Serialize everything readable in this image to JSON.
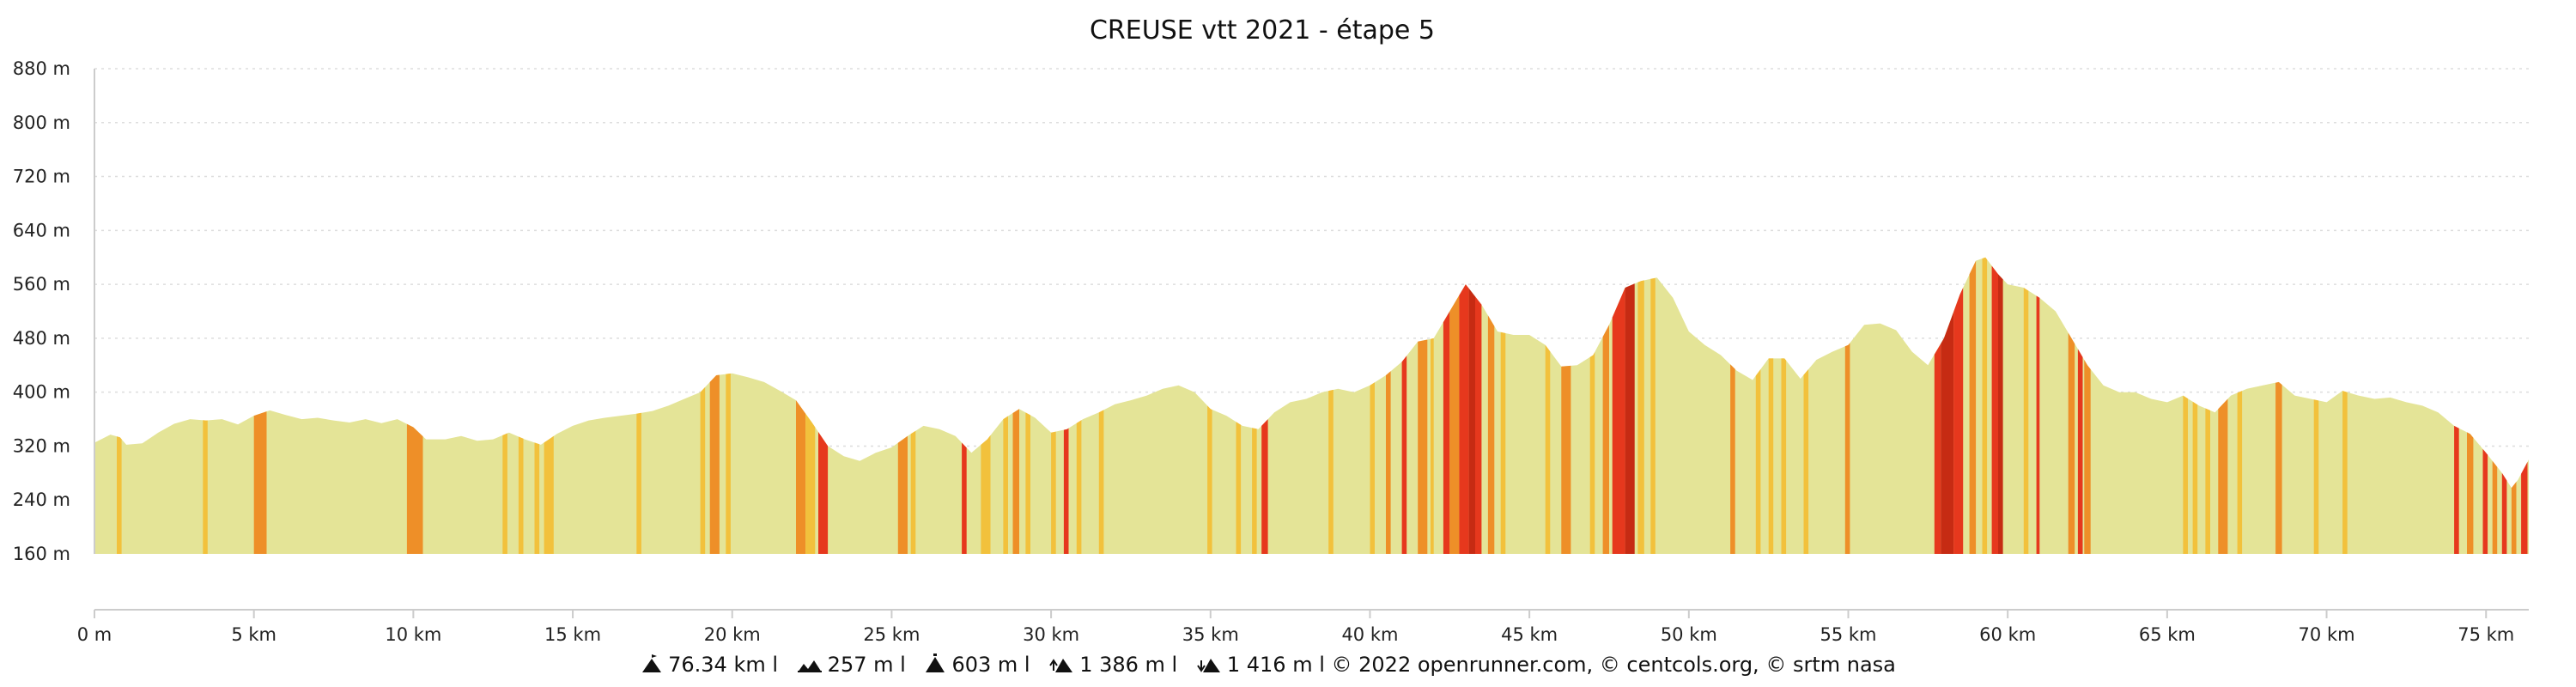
{
  "chart_data": {
    "type": "area",
    "title": "CREUSE vtt 2021 - étape 5",
    "xlabel": "",
    "ylabel": "",
    "x_unit": "km",
    "y_unit": "m",
    "xlim": [
      0,
      76.34
    ],
    "ylim": [
      160,
      880
    ],
    "grid": true,
    "y_ticks": [
      "160 m",
      "240 m",
      "320 m",
      "400 m",
      "480 m",
      "560 m",
      "640 m",
      "720 m",
      "800 m",
      "880 m"
    ],
    "x_ticks": [
      "0 m",
      "5 km",
      "10 km",
      "15 km",
      "20 km",
      "25 km",
      "30 km",
      "35 km",
      "40 km",
      "45 km",
      "50 km",
      "55 km",
      "60 km",
      "65 km",
      "70 km",
      "75 km"
    ],
    "colors": {
      "base": "#e4e497",
      "moderate": "#f2c13c",
      "steep": "#ee8f28",
      "very_steep": "#e6381d",
      "extreme": "#c62b13",
      "grid": "#dddddd"
    },
    "profile": [
      {
        "km": 0,
        "elev": 325
      },
      {
        "km": 0.5,
        "elev": 337
      },
      {
        "km": 0.8,
        "elev": 333
      },
      {
        "km": 1.0,
        "elev": 322
      },
      {
        "km": 1.5,
        "elev": 324
      },
      {
        "km": 2.0,
        "elev": 340
      },
      {
        "km": 2.5,
        "elev": 353
      },
      {
        "km": 3.0,
        "elev": 360
      },
      {
        "km": 3.5,
        "elev": 358
      },
      {
        "km": 4.0,
        "elev": 360
      },
      {
        "km": 4.5,
        "elev": 352
      },
      {
        "km": 5.0,
        "elev": 365
      },
      {
        "km": 5.5,
        "elev": 373
      },
      {
        "km": 6.0,
        "elev": 366
      },
      {
        "km": 6.5,
        "elev": 360
      },
      {
        "km": 7.0,
        "elev": 362
      },
      {
        "km": 7.5,
        "elev": 358
      },
      {
        "km": 8.0,
        "elev": 355
      },
      {
        "km": 8.5,
        "elev": 360
      },
      {
        "km": 9.0,
        "elev": 354
      },
      {
        "km": 9.5,
        "elev": 360
      },
      {
        "km": 10.0,
        "elev": 348
      },
      {
        "km": 10.4,
        "elev": 330
      },
      {
        "km": 11.0,
        "elev": 330
      },
      {
        "km": 11.5,
        "elev": 335
      },
      {
        "km": 12.0,
        "elev": 328
      },
      {
        "km": 12.5,
        "elev": 330
      },
      {
        "km": 13.0,
        "elev": 340
      },
      {
        "km": 13.5,
        "elev": 330
      },
      {
        "km": 14.0,
        "elev": 322
      },
      {
        "km": 14.5,
        "elev": 338
      },
      {
        "km": 15.0,
        "elev": 350
      },
      {
        "km": 15.5,
        "elev": 358
      },
      {
        "km": 16.0,
        "elev": 362
      },
      {
        "km": 16.5,
        "elev": 365
      },
      {
        "km": 17.0,
        "elev": 368
      },
      {
        "km": 17.5,
        "elev": 372
      },
      {
        "km": 18.0,
        "elev": 380
      },
      {
        "km": 18.5,
        "elev": 390
      },
      {
        "km": 19.0,
        "elev": 400
      },
      {
        "km": 19.5,
        "elev": 425
      },
      {
        "km": 20.0,
        "elev": 428
      },
      {
        "km": 20.5,
        "elev": 422
      },
      {
        "km": 21.0,
        "elev": 415
      },
      {
        "km": 21.5,
        "elev": 402
      },
      {
        "km": 22.0,
        "elev": 388
      },
      {
        "km": 22.5,
        "elev": 355
      },
      {
        "km": 23.0,
        "elev": 320
      },
      {
        "km": 23.5,
        "elev": 305
      },
      {
        "km": 24.0,
        "elev": 298
      },
      {
        "km": 24.5,
        "elev": 310
      },
      {
        "km": 25.0,
        "elev": 318
      },
      {
        "km": 25.5,
        "elev": 335
      },
      {
        "km": 26.0,
        "elev": 350
      },
      {
        "km": 26.5,
        "elev": 345
      },
      {
        "km": 27.0,
        "elev": 335
      },
      {
        "km": 27.5,
        "elev": 310
      },
      {
        "km": 28.0,
        "elev": 330
      },
      {
        "km": 28.5,
        "elev": 360
      },
      {
        "km": 29.0,
        "elev": 375
      },
      {
        "km": 29.5,
        "elev": 362
      },
      {
        "km": 30.0,
        "elev": 340
      },
      {
        "km": 30.5,
        "elev": 345
      },
      {
        "km": 31.0,
        "elev": 360
      },
      {
        "km": 31.5,
        "elev": 370
      },
      {
        "km": 32.0,
        "elev": 382
      },
      {
        "km": 32.5,
        "elev": 388
      },
      {
        "km": 33.0,
        "elev": 395
      },
      {
        "km": 33.5,
        "elev": 405
      },
      {
        "km": 34.0,
        "elev": 410
      },
      {
        "km": 34.5,
        "elev": 400
      },
      {
        "km": 35.0,
        "elev": 375
      },
      {
        "km": 35.5,
        "elev": 365
      },
      {
        "km": 36.0,
        "elev": 350
      },
      {
        "km": 36.5,
        "elev": 345
      },
      {
        "km": 37.0,
        "elev": 370
      },
      {
        "km": 37.5,
        "elev": 385
      },
      {
        "km": 38.0,
        "elev": 390
      },
      {
        "km": 38.5,
        "elev": 400
      },
      {
        "km": 39.0,
        "elev": 405
      },
      {
        "km": 39.5,
        "elev": 400
      },
      {
        "km": 40.0,
        "elev": 410
      },
      {
        "km": 40.5,
        "elev": 425
      },
      {
        "km": 41.0,
        "elev": 445
      },
      {
        "km": 41.5,
        "elev": 475
      },
      {
        "km": 42.0,
        "elev": 480
      },
      {
        "km": 42.5,
        "elev": 520
      },
      {
        "km": 43.0,
        "elev": 560
      },
      {
        "km": 43.5,
        "elev": 530
      },
      {
        "km": 44.0,
        "elev": 490
      },
      {
        "km": 44.5,
        "elev": 485
      },
      {
        "km": 45.0,
        "elev": 485
      },
      {
        "km": 45.5,
        "elev": 470
      },
      {
        "km": 46.0,
        "elev": 438
      },
      {
        "km": 46.5,
        "elev": 440
      },
      {
        "km": 47.0,
        "elev": 455
      },
      {
        "km": 47.5,
        "elev": 500
      },
      {
        "km": 48.0,
        "elev": 555
      },
      {
        "km": 48.5,
        "elev": 565
      },
      {
        "km": 49.0,
        "elev": 570
      },
      {
        "km": 49.5,
        "elev": 540
      },
      {
        "km": 50.0,
        "elev": 490
      },
      {
        "km": 50.5,
        "elev": 470
      },
      {
        "km": 51.0,
        "elev": 455
      },
      {
        "km": 51.5,
        "elev": 432
      },
      {
        "km": 52.0,
        "elev": 418
      },
      {
        "km": 52.5,
        "elev": 450
      },
      {
        "km": 53.0,
        "elev": 450
      },
      {
        "km": 53.5,
        "elev": 420
      },
      {
        "km": 54.0,
        "elev": 448
      },
      {
        "km": 54.5,
        "elev": 460
      },
      {
        "km": 55.0,
        "elev": 470
      },
      {
        "km": 55.5,
        "elev": 500
      },
      {
        "km": 56.0,
        "elev": 502
      },
      {
        "km": 56.5,
        "elev": 492
      },
      {
        "km": 57.0,
        "elev": 460
      },
      {
        "km": 57.5,
        "elev": 440
      },
      {
        "km": 58.0,
        "elev": 480
      },
      {
        "km": 58.5,
        "elev": 545
      },
      {
        "km": 59.0,
        "elev": 595
      },
      {
        "km": 59.3,
        "elev": 600
      },
      {
        "km": 59.7,
        "elev": 575
      },
      {
        "km": 60.0,
        "elev": 560
      },
      {
        "km": 60.5,
        "elev": 555
      },
      {
        "km": 61.0,
        "elev": 540
      },
      {
        "km": 61.5,
        "elev": 520
      },
      {
        "km": 62.0,
        "elev": 480
      },
      {
        "km": 62.5,
        "elev": 440
      },
      {
        "km": 63.0,
        "elev": 410
      },
      {
        "km": 63.5,
        "elev": 400
      },
      {
        "km": 64.0,
        "elev": 400
      },
      {
        "km": 64.5,
        "elev": 390
      },
      {
        "km": 65.0,
        "elev": 385
      },
      {
        "km": 65.5,
        "elev": 395
      },
      {
        "km": 66.0,
        "elev": 380
      },
      {
        "km": 66.5,
        "elev": 370
      },
      {
        "km": 67.0,
        "elev": 395
      },
      {
        "km": 67.5,
        "elev": 405
      },
      {
        "km": 68.0,
        "elev": 410
      },
      {
        "km": 68.5,
        "elev": 415
      },
      {
        "km": 69.0,
        "elev": 395
      },
      {
        "km": 69.5,
        "elev": 390
      },
      {
        "km": 70.0,
        "elev": 385
      },
      {
        "km": 70.5,
        "elev": 402
      },
      {
        "km": 71.0,
        "elev": 395
      },
      {
        "km": 71.5,
        "elev": 390
      },
      {
        "km": 72.0,
        "elev": 392
      },
      {
        "km": 72.5,
        "elev": 385
      },
      {
        "km": 73.0,
        "elev": 380
      },
      {
        "km": 73.5,
        "elev": 370
      },
      {
        "km": 74.0,
        "elev": 350
      },
      {
        "km": 74.5,
        "elev": 338
      },
      {
        "km": 75.0,
        "elev": 310
      },
      {
        "km": 75.5,
        "elev": 280
      },
      {
        "km": 75.8,
        "elev": 258
      },
      {
        "km": 76.0,
        "elev": 270
      },
      {
        "km": 76.34,
        "elev": 300
      }
    ],
    "slope_segments": [
      {
        "from": 0.7,
        "to": 0.85,
        "level": "moderate"
      },
      {
        "from": 3.4,
        "to": 3.55,
        "level": "moderate"
      },
      {
        "from": 5.0,
        "to": 5.4,
        "level": "steep"
      },
      {
        "from": 9.8,
        "to": 10.3,
        "level": "steep"
      },
      {
        "from": 12.8,
        "to": 12.95,
        "level": "moderate"
      },
      {
        "from": 13.3,
        "to": 13.45,
        "level": "moderate"
      },
      {
        "from": 13.8,
        "to": 13.95,
        "level": "moderate"
      },
      {
        "from": 14.1,
        "to": 14.4,
        "level": "moderate"
      },
      {
        "from": 17.0,
        "to": 17.15,
        "level": "moderate"
      },
      {
        "from": 19.0,
        "to": 19.15,
        "level": "moderate"
      },
      {
        "from": 19.3,
        "to": 19.6,
        "level": "steep"
      },
      {
        "from": 19.8,
        "to": 19.95,
        "level": "moderate"
      },
      {
        "from": 22.0,
        "to": 22.3,
        "level": "steep"
      },
      {
        "from": 22.3,
        "to": 22.6,
        "level": "moderate"
      },
      {
        "from": 22.7,
        "to": 23.0,
        "level": "very_steep"
      },
      {
        "from": 25.2,
        "to": 25.5,
        "level": "steep"
      },
      {
        "from": 25.6,
        "to": 25.75,
        "level": "moderate"
      },
      {
        "from": 27.2,
        "to": 27.35,
        "level": "very_steep"
      },
      {
        "from": 27.8,
        "to": 28.1,
        "level": "moderate"
      },
      {
        "from": 28.5,
        "to": 28.65,
        "level": "moderate"
      },
      {
        "from": 28.8,
        "to": 29.0,
        "level": "steep"
      },
      {
        "from": 29.2,
        "to": 29.35,
        "level": "moderate"
      },
      {
        "from": 30.0,
        "to": 30.15,
        "level": "moderate"
      },
      {
        "from": 30.4,
        "to": 30.55,
        "level": "very_steep"
      },
      {
        "from": 30.8,
        "to": 30.95,
        "level": "moderate"
      },
      {
        "from": 31.5,
        "to": 31.65,
        "level": "moderate"
      },
      {
        "from": 34.9,
        "to": 35.05,
        "level": "moderate"
      },
      {
        "from": 35.8,
        "to": 35.95,
        "level": "moderate"
      },
      {
        "from": 36.3,
        "to": 36.45,
        "level": "moderate"
      },
      {
        "from": 36.6,
        "to": 36.8,
        "level": "very_steep"
      },
      {
        "from": 38.7,
        "to": 38.85,
        "level": "moderate"
      },
      {
        "from": 40.0,
        "to": 40.15,
        "level": "moderate"
      },
      {
        "from": 40.5,
        "to": 40.65,
        "level": "steep"
      },
      {
        "from": 41.0,
        "to": 41.15,
        "level": "very_steep"
      },
      {
        "from": 41.5,
        "to": 41.8,
        "level": "steep"
      },
      {
        "from": 41.9,
        "to": 42.0,
        "level": "moderate"
      },
      {
        "from": 42.3,
        "to": 42.5,
        "level": "very_steep"
      },
      {
        "from": 42.5,
        "to": 42.8,
        "level": "steep"
      },
      {
        "from": 42.8,
        "to": 43.1,
        "level": "very_steep"
      },
      {
        "from": 43.1,
        "to": 43.3,
        "level": "extreme"
      },
      {
        "from": 43.3,
        "to": 43.5,
        "level": "very_steep"
      },
      {
        "from": 43.7,
        "to": 43.9,
        "level": "steep"
      },
      {
        "from": 44.1,
        "to": 44.25,
        "level": "moderate"
      },
      {
        "from": 45.5,
        "to": 45.65,
        "level": "moderate"
      },
      {
        "from": 46.0,
        "to": 46.3,
        "level": "steep"
      },
      {
        "from": 46.9,
        "to": 47.05,
        "level": "moderate"
      },
      {
        "from": 47.3,
        "to": 47.5,
        "level": "steep"
      },
      {
        "from": 47.6,
        "to": 48.0,
        "level": "very_steep"
      },
      {
        "from": 48.0,
        "to": 48.3,
        "level": "extreme"
      },
      {
        "from": 48.4,
        "to": 48.6,
        "level": "moderate"
      },
      {
        "from": 48.8,
        "to": 48.95,
        "level": "moderate"
      },
      {
        "from": 51.3,
        "to": 51.45,
        "level": "steep"
      },
      {
        "from": 52.1,
        "to": 52.25,
        "level": "moderate"
      },
      {
        "from": 52.5,
        "to": 52.65,
        "level": "moderate"
      },
      {
        "from": 52.9,
        "to": 53.05,
        "level": "moderate"
      },
      {
        "from": 53.6,
        "to": 53.75,
        "level": "moderate"
      },
      {
        "from": 54.9,
        "to": 55.05,
        "level": "steep"
      },
      {
        "from": 57.7,
        "to": 57.9,
        "level": "very_steep"
      },
      {
        "from": 57.9,
        "to": 58.3,
        "level": "extreme"
      },
      {
        "from": 58.3,
        "to": 58.6,
        "level": "very_steep"
      },
      {
        "from": 58.8,
        "to": 59.0,
        "level": "steep"
      },
      {
        "from": 59.2,
        "to": 59.35,
        "level": "moderate"
      },
      {
        "from": 59.5,
        "to": 59.7,
        "level": "very_steep"
      },
      {
        "from": 59.7,
        "to": 59.85,
        "level": "extreme"
      },
      {
        "from": 60.5,
        "to": 60.65,
        "level": "moderate"
      },
      {
        "from": 60.9,
        "to": 61.0,
        "level": "very_steep"
      },
      {
        "from": 61.9,
        "to": 62.1,
        "level": "steep"
      },
      {
        "from": 62.2,
        "to": 62.35,
        "level": "very_steep"
      },
      {
        "from": 62.4,
        "to": 62.6,
        "level": "steep"
      },
      {
        "from": 65.5,
        "to": 65.65,
        "level": "moderate"
      },
      {
        "from": 65.8,
        "to": 65.95,
        "level": "moderate"
      },
      {
        "from": 66.2,
        "to": 66.35,
        "level": "moderate"
      },
      {
        "from": 66.6,
        "to": 66.9,
        "level": "steep"
      },
      {
        "from": 67.2,
        "to": 67.35,
        "level": "moderate"
      },
      {
        "from": 68.4,
        "to": 68.6,
        "level": "steep"
      },
      {
        "from": 69.6,
        "to": 69.75,
        "level": "moderate"
      },
      {
        "from": 70.5,
        "to": 70.65,
        "level": "moderate"
      },
      {
        "from": 74.0,
        "to": 74.15,
        "level": "very_steep"
      },
      {
        "from": 74.4,
        "to": 74.6,
        "level": "steep"
      },
      {
        "from": 74.9,
        "to": 75.05,
        "level": "very_steep"
      },
      {
        "from": 75.2,
        "to": 75.35,
        "level": "steep"
      },
      {
        "from": 75.5,
        "to": 75.65,
        "level": "very_steep"
      },
      {
        "from": 75.8,
        "to": 75.95,
        "level": "steep"
      },
      {
        "from": 76.1,
        "to": 76.3,
        "level": "very_steep"
      }
    ]
  },
  "footer": {
    "distance": "76.34 km l",
    "elev_min": "257 m l",
    "elev_max": "603 m l",
    "ascent": "1 386 m l",
    "descent": "1 416 m l © 2022 openrunner.com, © centcols.org, © srtm nasa"
  }
}
